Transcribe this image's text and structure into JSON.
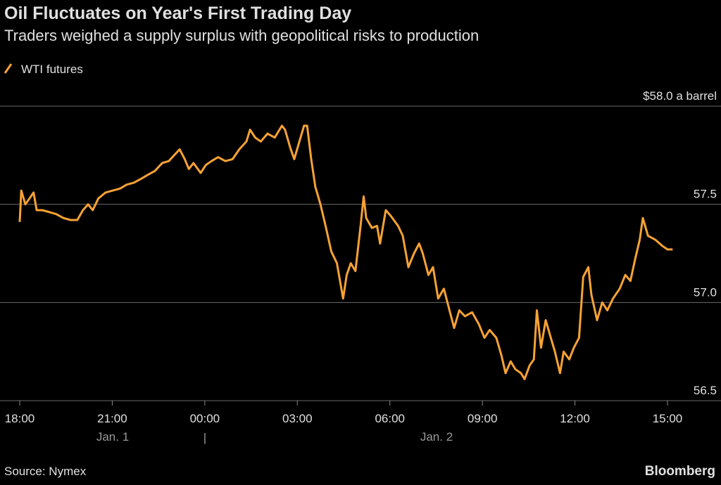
{
  "chart_data": {
    "type": "line",
    "title": "Oil Fluctuates on Year's First Trading Day",
    "subtitle": "Traders weighed a supply surplus with geopolitical risks to production",
    "source": "Source: Nymex",
    "brand": "Bloomberg",
    "day_labels": [
      "Jan. 1",
      "Jan. 2"
    ],
    "x": [
      "18:00",
      "18:03",
      "18:11",
      "18:19",
      "18:27",
      "18:33",
      "18:44",
      "18:58",
      "19:11",
      "19:25",
      "19:39",
      "19:52",
      "20:03",
      "20:13",
      "20:22",
      "20:33",
      "20:47",
      "21:01",
      "21:15",
      "21:28",
      "21:42",
      "21:56",
      "22:09",
      "22:23",
      "22:37",
      "22:50",
      "23:04",
      "23:11",
      "23:21",
      "23:29",
      "23:38",
      "23:52",
      "00:02",
      "00:13",
      "00:26",
      "00:40",
      "00:54",
      "01:07",
      "01:21",
      "01:28",
      "01:38",
      "01:49",
      "02:02",
      "02:16",
      "02:30",
      "02:36",
      "02:46",
      "02:54",
      "03:04",
      "03:13",
      "03:19",
      "03:27",
      "03:35",
      "03:45",
      "03:55",
      "04:06",
      "04:17",
      "04:23",
      "04:29",
      "04:36",
      "04:44",
      "04:53",
      "05:03",
      "05:09",
      "05:14",
      "05:25",
      "05:35",
      "05:41",
      "05:52",
      "06:02",
      "06:16",
      "06:25",
      "06:36",
      "06:47",
      "06:57",
      "07:04",
      "07:15",
      "07:24",
      "07:34",
      "07:45",
      "07:56",
      "08:05",
      "08:15",
      "08:26",
      "08:40",
      "08:53",
      "09:04",
      "09:14",
      "09:27",
      "09:37",
      "09:45",
      "09:55",
      "10:04",
      "10:15",
      "10:22",
      "10:32",
      "10:40",
      "10:46",
      "10:54",
      "11:03",
      "11:13",
      "11:21",
      "11:31",
      "11:38",
      "11:49",
      "11:58",
      "12:08",
      "12:16",
      "12:26",
      "12:32",
      "12:43",
      "12:53",
      "13:03",
      "13:14",
      "13:27",
      "13:38",
      "13:48",
      "13:57",
      "14:06",
      "14:12",
      "14:22",
      "14:36",
      "14:49",
      "15:00",
      "15:10"
    ],
    "series": [
      {
        "name": "WTI futures",
        "color": "#f7a234",
        "values": [
          57.41,
          57.57,
          57.5,
          57.53,
          57.56,
          57.47,
          57.47,
          57.46,
          57.45,
          57.43,
          57.42,
          57.42,
          57.47,
          57.5,
          57.47,
          57.53,
          57.56,
          57.57,
          57.58,
          57.6,
          57.61,
          57.63,
          57.65,
          57.67,
          57.71,
          57.72,
          57.76,
          57.78,
          57.73,
          57.68,
          57.71,
          57.66,
          57.7,
          57.72,
          57.74,
          57.72,
          57.73,
          57.78,
          57.82,
          57.88,
          57.84,
          57.82,
          57.86,
          57.84,
          57.9,
          57.88,
          57.79,
          57.73,
          57.82,
          57.9,
          57.9,
          57.73,
          57.59,
          57.5,
          57.39,
          57.26,
          57.2,
          57.11,
          57.02,
          57.14,
          57.2,
          57.16,
          57.39,
          57.54,
          57.43,
          57.38,
          57.39,
          57.3,
          57.47,
          57.44,
          57.39,
          57.34,
          57.18,
          57.25,
          57.3,
          57.25,
          57.14,
          57.18,
          57.02,
          57.07,
          56.96,
          56.87,
          56.96,
          56.93,
          56.95,
          56.89,
          56.82,
          56.86,
          56.82,
          56.73,
          56.64,
          56.7,
          56.66,
          56.64,
          56.61,
          56.68,
          56.71,
          56.96,
          56.77,
          56.91,
          56.82,
          56.75,
          56.64,
          56.75,
          56.71,
          56.77,
          56.82,
          57.13,
          57.18,
          57.04,
          56.91,
          57.0,
          56.96,
          57.02,
          57.07,
          57.14,
          57.11,
          57.22,
          57.32,
          57.43,
          57.34,
          57.32,
          57.29,
          57.27,
          57.27
        ]
      }
    ],
    "xlim": [
      "18:00",
      "15:00"
    ],
    "xticks": [
      "18:00",
      "21:00",
      "00:00",
      "03:00",
      "06:00",
      "09:00",
      "12:00",
      "15:00"
    ],
    "ylim": [
      56.5,
      58.0
    ],
    "yticks": [
      {
        "value": 58.0,
        "label": "$58.0 a barrel"
      },
      57.5,
      {
        "value": 57.0,
        "label": "57.0"
      },
      56.5
    ],
    "grid": true
  }
}
